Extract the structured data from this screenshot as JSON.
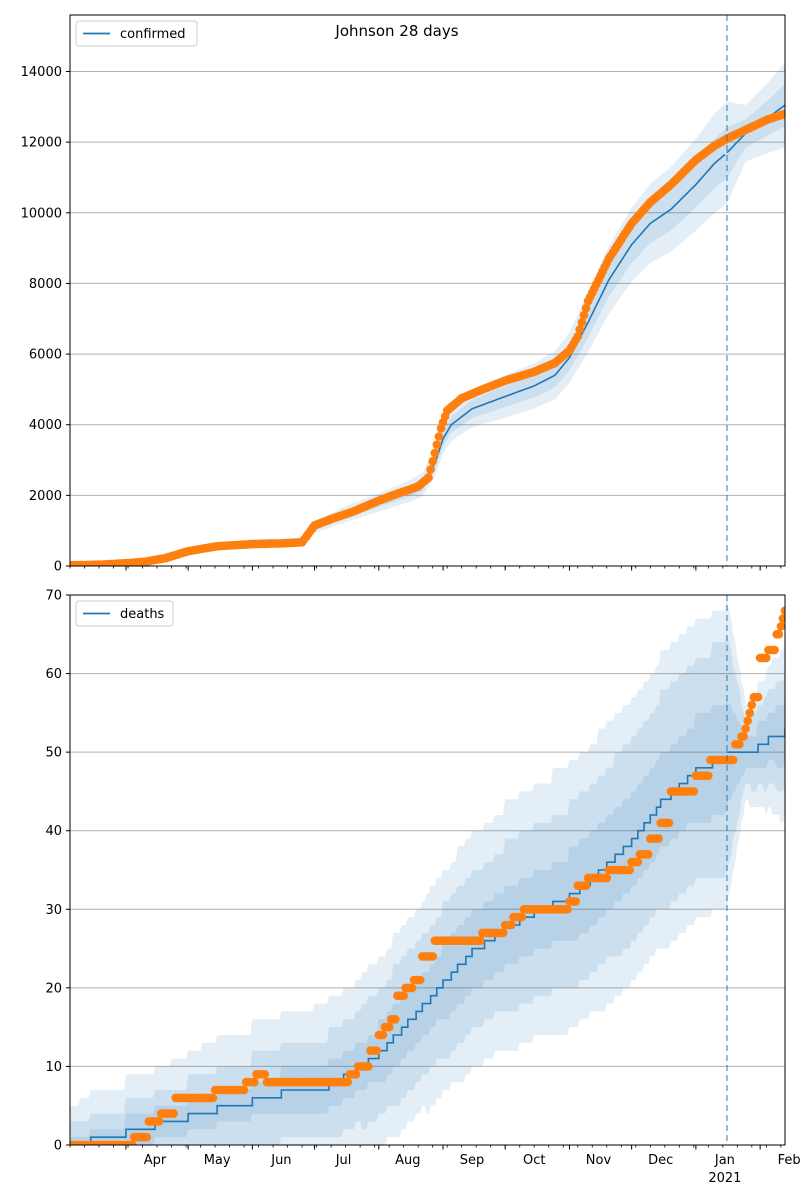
{
  "figure_title": "Johnson 28 days",
  "colors": {
    "model": "#1f77b4",
    "observed": "#ff7f0e",
    "band": "#1f77b4",
    "grid": "#b0b0b0",
    "forecast_line": "#1f77b4"
  },
  "forecast_start": "2021-01-16",
  "chart_data": [
    {
      "type": "line",
      "panel": "top",
      "legend": [
        "confirmed"
      ],
      "legend_position": "top-left",
      "grid": "y",
      "ylim": [
        0,
        15600
      ],
      "xlim": [
        "2020-03-05",
        "2021-02-13"
      ],
      "yticks": [
        "0",
        "2000",
        "4000",
        "6000",
        "8000",
        "10000",
        "12000",
        "14000"
      ],
      "series": [
        {
          "name": "confirmed",
          "kind": "model",
          "x": [
            "2020-03-05",
            "2020-04-01",
            "2020-05-01",
            "2020-06-01",
            "2020-06-25",
            "2020-07-01",
            "2020-07-15",
            "2020-08-01",
            "2020-08-15",
            "2020-08-22",
            "2020-08-28",
            "2020-09-01",
            "2020-09-05",
            "2020-09-15",
            "2020-10-01",
            "2020-10-15",
            "2020-10-25",
            "2020-11-01",
            "2020-11-10",
            "2020-11-20",
            "2020-12-01",
            "2020-12-10",
            "2020-12-20",
            "2021-01-01",
            "2021-01-10",
            "2021-01-16",
            "2021-01-25",
            "2021-02-05",
            "2021-02-13"
          ],
          "y": [
            0,
            60,
            450,
            650,
            680,
            1100,
            1450,
            1800,
            2100,
            2300,
            2900,
            3600,
            4000,
            4450,
            4800,
            5100,
            5400,
            5900,
            6900,
            8100,
            9100,
            9700,
            10100,
            10800,
            11400,
            11700,
            12250,
            12700,
            13050
          ],
          "band_half_widths": [
            [
              0,
              20,
              40,
              60,
              60,
              90,
              110,
              130,
              150,
              170,
              190,
              210,
              230,
              260,
              300,
              320,
              340,
              360,
              420,
              480,
              520,
              560,
              600,
              650,
              700,
              720,
              400,
              500,
              600
            ],
            [
              0,
              40,
              80,
              110,
              120,
              170,
              220,
              260,
              300,
              340,
              380,
              420,
              460,
              520,
              600,
              640,
              680,
              720,
              840,
              960,
              1040,
              1120,
              1200,
              1300,
              1400,
              1450,
              800,
              1000,
              1200
            ]
          ]
        },
        {
          "name": "observed",
          "kind": "observed",
          "x": [
            "2020-03-05",
            "2020-03-20",
            "2020-04-01",
            "2020-04-10",
            "2020-04-20",
            "2020-05-01",
            "2020-05-15",
            "2020-06-01",
            "2020-06-15",
            "2020-06-25",
            "2020-07-01",
            "2020-07-10",
            "2020-07-20",
            "2020-08-01",
            "2020-08-10",
            "2020-08-20",
            "2020-08-25",
            "2020-08-28",
            "2020-08-31",
            "2020-09-03",
            "2020-09-10",
            "2020-09-20",
            "2020-10-01",
            "2020-10-15",
            "2020-10-25",
            "2020-11-01",
            "2020-11-05",
            "2020-11-10",
            "2020-11-20",
            "2020-12-01",
            "2020-12-10",
            "2020-12-20",
            "2021-01-01",
            "2021-01-10",
            "2021-01-16",
            "2021-01-25",
            "2021-02-05",
            "2021-02-13"
          ],
          "y": [
            20,
            40,
            80,
            120,
            220,
            420,
            560,
            620,
            640,
            670,
            1150,
            1350,
            1550,
            1850,
            2050,
            2250,
            2500,
            3200,
            3900,
            4400,
            4750,
            5000,
            5250,
            5500,
            5750,
            6100,
            6500,
            7500,
            8700,
            9700,
            10300,
            10800,
            11500,
            11900,
            12100,
            12350,
            12650,
            12800
          ]
        }
      ]
    },
    {
      "type": "line",
      "panel": "bottom",
      "legend": [
        "deaths"
      ],
      "legend_position": "top-left",
      "grid": "y",
      "ylim": [
        0,
        70
      ],
      "xlim": [
        "2020-03-05",
        "2021-02-13"
      ],
      "yticks": [
        "0",
        "10",
        "20",
        "30",
        "40",
        "50",
        "60",
        "70"
      ],
      "xtick_labels": [
        "Apr",
        "May",
        "Jun",
        "Jul",
        "Aug",
        "Sep",
        "Oct",
        "Nov",
        "Dec",
        "Jan",
        "Feb"
      ],
      "xtick_year": "2021",
      "series": [
        {
          "name": "deaths",
          "kind": "model",
          "x": [
            "2020-03-05",
            "2020-03-15",
            "2020-04-01",
            "2020-04-15",
            "2020-05-01",
            "2020-05-15",
            "2020-06-01",
            "2020-06-15",
            "2020-07-01",
            "2020-07-15",
            "2020-08-01",
            "2020-08-15",
            "2020-09-01",
            "2020-09-15",
            "2020-10-01",
            "2020-10-15",
            "2020-11-01",
            "2020-11-15",
            "2020-12-01",
            "2020-12-15",
            "2021-01-01",
            "2021-01-16",
            "2021-01-25",
            "2021-02-05",
            "2021-02-13"
          ],
          "y": [
            0,
            1,
            2,
            3,
            4,
            5,
            6,
            7,
            7,
            9,
            12,
            16,
            21,
            25,
            28,
            30,
            32,
            35,
            39,
            44,
            48,
            50,
            50,
            52,
            53
          ],
          "band_half_widths": [
            [
              1,
              1,
              1.5,
              1.5,
              2,
              2,
              2,
              2.5,
              2.5,
              3,
              3.5,
              4,
              4.5,
              4.5,
              5,
              5,
              5.5,
              5.5,
              6,
              6,
              6.5,
              7,
              2,
              3,
              4
            ],
            [
              2.5,
              3,
              3.5,
              4,
              4.5,
              5,
              5.5,
              6,
              6,
              7,
              8,
              9,
              9.5,
              10,
              10.5,
              11,
              11.5,
              12,
              13,
              13.5,
              14,
              15,
              4,
              6,
              7
            ],
            [
              5,
              6,
              6.5,
              7,
              8,
              9,
              9.5,
              10,
              10.5,
              11,
              12,
              13,
              14,
              15,
              15.5,
              16,
              17,
              17.5,
              18,
              18.5,
              19,
              19.5,
              6,
              9,
              11
            ]
          ]
        },
        {
          "name": "observed",
          "kind": "observed",
          "x": [
            "2020-03-05",
            "2020-04-05",
            "2020-04-12",
            "2020-04-18",
            "2020-04-25",
            "2020-05-01",
            "2020-05-14",
            "2020-05-29",
            "2020-06-03",
            "2020-06-08",
            "2020-07-18",
            "2020-07-22",
            "2020-07-28",
            "2020-08-01",
            "2020-08-04",
            "2020-08-07",
            "2020-08-10",
            "2020-08-14",
            "2020-08-18",
            "2020-08-22",
            "2020-08-26",
            "2020-08-28",
            "2020-09-18",
            "2020-09-20",
            "2020-10-01",
            "2020-10-05",
            "2020-10-10",
            "2020-10-25",
            "2020-11-01",
            "2020-11-05",
            "2020-11-10",
            "2020-11-20",
            "2020-11-25",
            "2020-12-01",
            "2020-12-05",
            "2020-12-10",
            "2020-12-15",
            "2020-12-20",
            "2021-01-01",
            "2021-01-08",
            "2021-01-16",
            "2021-01-20",
            "2021-01-23",
            "2021-01-25",
            "2021-01-26",
            "2021-01-27",
            "2021-01-28",
            "2021-01-29",
            "2021-02-01",
            "2021-02-02",
            "2021-02-05",
            "2021-02-09",
            "2021-02-10",
            "2021-02-11",
            "2021-02-12",
            "2021-02-13"
          ],
          "y": [
            0,
            1,
            3,
            4,
            6,
            6,
            7,
            8,
            9,
            8,
            9,
            10,
            12,
            14,
            15,
            16,
            19,
            20,
            21,
            24,
            24,
            26,
            26,
            27,
            28,
            29,
            30,
            30,
            31,
            33,
            34,
            35,
            35,
            36,
            37,
            39,
            41,
            45,
            47,
            49,
            49,
            51,
            52,
            53,
            54,
            55,
            56,
            57,
            62,
            62,
            63,
            65,
            65,
            66,
            67,
            68
          ]
        }
      ]
    }
  ]
}
